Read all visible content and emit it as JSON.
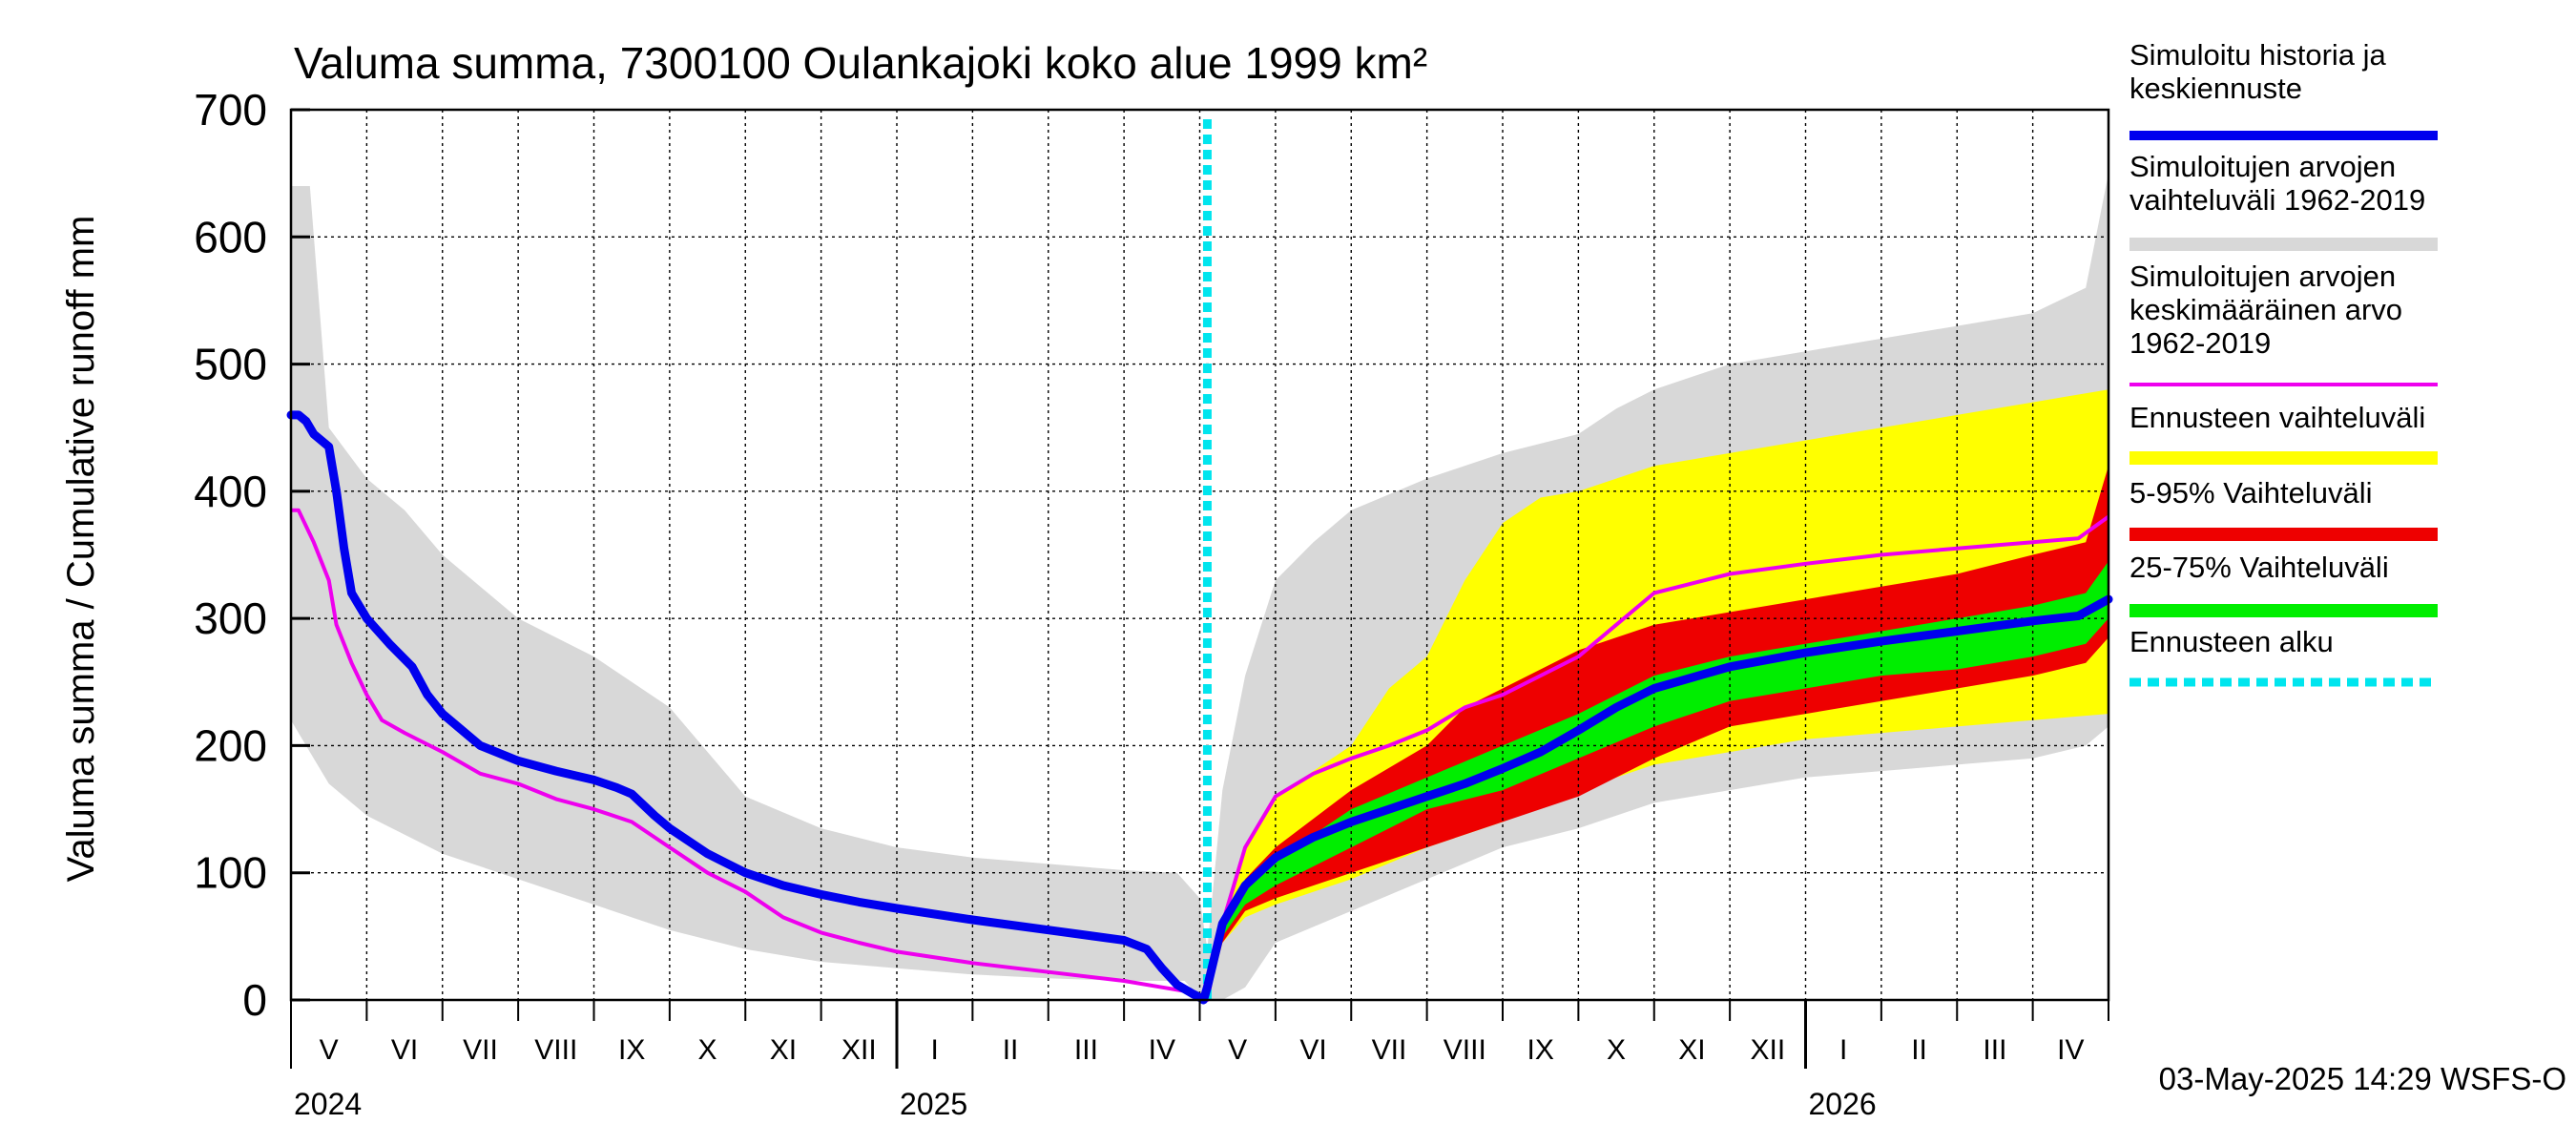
{
  "chart_data": {
    "type": "area",
    "title": "Valuma summa, 7300100 Oulankajoki koko alue 1999 km²",
    "ylabel": "Valuma summa / Cumulative runoff    mm",
    "xlabel": "",
    "ylim": [
      0,
      700
    ],
    "yticks": [
      0,
      100,
      200,
      300,
      400,
      500,
      600,
      700
    ],
    "x_unit": "month index (0 = 1 May 2024)",
    "xlim": [
      0,
      24
    ],
    "forecast_start_x": 12.1,
    "months": [
      "V",
      "VI",
      "VII",
      "VIII",
      "IX",
      "X",
      "XI",
      "XII",
      "I",
      "II",
      "III",
      "IV",
      "V",
      "VI",
      "VII",
      "VIII",
      "IX",
      "X",
      "XI",
      "XII",
      "I",
      "II",
      "III",
      "IV"
    ],
    "years": [
      {
        "label": "2024",
        "x": 0
      },
      {
        "label": "2025",
        "x": 8
      },
      {
        "label": "2026",
        "x": 20
      }
    ],
    "timestamp": "03-May-2025 14:29 WSFS-O",
    "legend": [
      {
        "label": "Simuloitu historia ja keskiennuste",
        "lines": [
          "Simuloitu historia ja",
          "keskiennuste"
        ],
        "color": "#0000ee",
        "style": "line"
      },
      {
        "label": "Simuloitujen arvojen vaihteluväli 1962-2019",
        "lines": [
          "Simuloitujen arvojen",
          "vaihteluväli 1962-2019"
        ],
        "color": "#d8d8d8",
        "style": "band"
      },
      {
        "label": "Simuloitujen arvojen keskimääräinen arvo 1962-2019",
        "lines": [
          "Simuloitujen arvojen",
          "keskimääräinen arvo",
          "  1962-2019"
        ],
        "color": "#ee00ee",
        "style": "thin"
      },
      {
        "label": "Ennusteen vaihteluväli",
        "lines": [
          "Ennusteen vaihteluväli"
        ],
        "color": "#ffff00",
        "style": "band"
      },
      {
        "label": "5-95% Vaihteluväli",
        "lines": [
          "5-95% Vaihteluväli"
        ],
        "color": "#ee0000",
        "style": "band"
      },
      {
        "label": "25-75% Vaihteluväli",
        "lines": [
          "25-75% Vaihteluväli"
        ],
        "color": "#00ee00",
        "style": "band"
      },
      {
        "label": "Ennusteen alku",
        "lines": [
          "Ennusteen alku"
        ],
        "color": "#00e5ee",
        "style": "dash"
      }
    ],
    "series": [
      {
        "name": "Simuloitujen arvojen vaihteluväli 1962-2019 (upper)",
        "x": [
          0,
          0.25,
          0.5,
          1,
          1.5,
          2,
          3,
          4,
          5,
          6,
          7,
          8,
          9,
          10,
          11,
          11.7,
          12.0,
          12.1,
          12.3,
          12.6,
          13,
          13.5,
          14,
          15,
          16,
          17,
          17.5,
          18,
          19,
          20,
          21,
          22,
          23,
          23.7,
          24
        ],
        "values": [
          640,
          640,
          450,
          410,
          385,
          350,
          300,
          270,
          230,
          160,
          135,
          120,
          112,
          107,
          102,
          100,
          80,
          40,
          165,
          255,
          330,
          360,
          385,
          410,
          430,
          445,
          465,
          480,
          500,
          510,
          520,
          530,
          540,
          560,
          650
        ]
      },
      {
        "name": "Simuloitujen arvojen vaihteluväli 1962-2019 (lower)",
        "x": [
          0,
          0.25,
          0.5,
          1,
          2,
          3,
          4,
          5,
          6,
          7,
          8,
          9,
          10,
          11,
          11.8,
          12.0,
          12.1,
          12.3,
          12.6,
          13,
          14,
          15,
          16,
          17,
          18,
          19,
          20,
          21,
          22,
          23,
          23.7,
          24
        ],
        "values": [
          220,
          195,
          170,
          145,
          115,
          95,
          75,
          55,
          40,
          30,
          25,
          20,
          17,
          15,
          15,
          2,
          0,
          0,
          10,
          45,
          70,
          95,
          120,
          135,
          155,
          165,
          175,
          180,
          185,
          190,
          200,
          215
        ]
      },
      {
        "name": "Ennusteen vaihteluväli (upper)",
        "x": [
          12.1,
          12.3,
          12.6,
          13,
          14,
          14.5,
          15,
          15.5,
          16,
          16.5,
          17,
          18,
          19,
          20,
          21,
          22,
          23,
          24
        ],
        "values": [
          0,
          60,
          120,
          160,
          200,
          245,
          270,
          330,
          375,
          395,
          400,
          420,
          430,
          440,
          450,
          460,
          470,
          480
        ]
      },
      {
        "name": "Ennusteen vaihteluväli (lower)",
        "x": [
          12.1,
          12.3,
          12.6,
          13,
          14,
          15,
          16,
          17,
          18,
          19,
          20,
          21,
          22,
          23,
          24
        ],
        "values": [
          0,
          45,
          65,
          75,
          95,
          120,
          140,
          165,
          185,
          195,
          205,
          210,
          215,
          220,
          225
        ]
      },
      {
        "name": "5-95% Vaihteluväli (upper)",
        "x": [
          12.1,
          12.3,
          12.6,
          13,
          14,
          15,
          15.5,
          16,
          17,
          18,
          19,
          20,
          21,
          22,
          23,
          23.7,
          24
        ],
        "values": [
          0,
          55,
          95,
          120,
          165,
          200,
          230,
          245,
          275,
          295,
          305,
          315,
          325,
          335,
          350,
          360,
          420
        ]
      },
      {
        "name": "5-95% Vaihteluväli (lower)",
        "x": [
          12.1,
          12.3,
          12.6,
          13,
          14,
          15,
          16,
          17,
          18,
          19,
          20,
          21,
          22,
          23,
          23.7,
          24
        ],
        "values": [
          0,
          45,
          70,
          80,
          100,
          120,
          140,
          160,
          190,
          215,
          225,
          235,
          245,
          255,
          265,
          285
        ]
      },
      {
        "name": "25-75% Vaihteluväli (upper)",
        "x": [
          12.1,
          12.3,
          12.6,
          13,
          14,
          15,
          16,
          17,
          18,
          19,
          20,
          21,
          22,
          23,
          23.7,
          24
        ],
        "values": [
          0,
          55,
          90,
          110,
          150,
          175,
          200,
          225,
          255,
          270,
          280,
          290,
          300,
          310,
          320,
          345
        ]
      },
      {
        "name": "25-75% Vaihteluväli (lower)",
        "x": [
          12.1,
          12.3,
          12.6,
          13,
          14,
          15,
          16,
          17,
          18,
          19,
          20,
          21,
          22,
          23,
          23.7,
          24
        ],
        "values": [
          0,
          50,
          75,
          90,
          120,
          150,
          165,
          190,
          215,
          235,
          245,
          255,
          260,
          270,
          280,
          300
        ]
      },
      {
        "name": "Simuloitujen arvojen keskimääräinen arvo 1962-2019",
        "x": [
          0,
          0.1,
          0.3,
          0.5,
          0.6,
          0.8,
          1,
          1.2,
          1.5,
          2,
          2.5,
          3,
          3.5,
          4,
          4.5,
          5,
          5.5,
          6,
          6.5,
          7,
          7.5,
          8,
          9,
          10,
          11,
          11.5,
          11.9,
          12.1,
          12.3,
          12.6,
          13,
          13.5,
          14,
          14.5,
          15,
          15.5,
          16,
          16.5,
          17,
          17.5,
          18,
          19,
          20,
          21,
          22,
          23,
          23.6,
          24
        ],
        "values": [
          385,
          385,
          360,
          330,
          295,
          265,
          240,
          220,
          210,
          195,
          178,
          170,
          158,
          150,
          140,
          120,
          100,
          85,
          65,
          53,
          45,
          38,
          29,
          22,
          15,
          10,
          6,
          0,
          60,
          120,
          160,
          178,
          190,
          200,
          212,
          230,
          240,
          255,
          270,
          295,
          320,
          335,
          343,
          350,
          355,
          360,
          363,
          380
        ]
      },
      {
        "name": "Simuloitu historia ja keskiennuste",
        "x": [
          0,
          0.1,
          0.2,
          0.3,
          0.5,
          0.6,
          0.7,
          0.8,
          1,
          1.3,
          1.6,
          1.8,
          2,
          2.5,
          3,
          3.5,
          4,
          4.3,
          4.5,
          4.8,
          5,
          5.5,
          6,
          6.5,
          7,
          7.5,
          8,
          9,
          10,
          11,
          11.3,
          11.5,
          11.7,
          11.9,
          12.0,
          12.05,
          12.1,
          12.3,
          12.6,
          13,
          13.5,
          14,
          14.5,
          15,
          15.5,
          16,
          16.5,
          17,
          17.5,
          18,
          19,
          20,
          21,
          22,
          23,
          23.6,
          24
        ],
        "values": [
          460,
          460,
          455,
          445,
          435,
          400,
          355,
          320,
          300,
          280,
          262,
          240,
          225,
          200,
          188,
          180,
          173,
          167,
          162,
          145,
          135,
          115,
          100,
          90,
          83,
          77,
          72,
          63,
          55,
          47,
          40,
          25,
          12,
          5,
          2,
          0,
          10,
          60,
          90,
          112,
          128,
          140,
          150,
          160,
          170,
          182,
          195,
          212,
          230,
          245,
          262,
          273,
          282,
          290,
          298,
          302,
          315
        ]
      }
    ]
  }
}
